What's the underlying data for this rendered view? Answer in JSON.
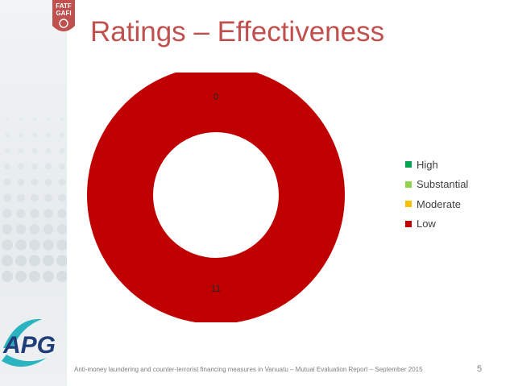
{
  "slide": {
    "title": "Ratings – Effectiveness",
    "footer": "Anti-money laundering and counter-terrorist financing measures in Vanuatu – Mutual Evaluation Report – September 2015",
    "page_number": "5",
    "logo_top_text_1": "FATF",
    "logo_top_text_2": "GAFI",
    "logo_bottom_text": "APG"
  },
  "chart_data": {
    "type": "pie",
    "style": "donut",
    "categories": [
      "High",
      "Substantial",
      "Moderate",
      "Low"
    ],
    "values": [
      0,
      0,
      0,
      11
    ],
    "colors": [
      "#00a651",
      "#92d050",
      "#ffc000",
      "#c00000"
    ],
    "data_labels": [
      {
        "category": "High",
        "text": "0"
      },
      {
        "category": "Low",
        "text": "11"
      }
    ],
    "legend": "right"
  }
}
